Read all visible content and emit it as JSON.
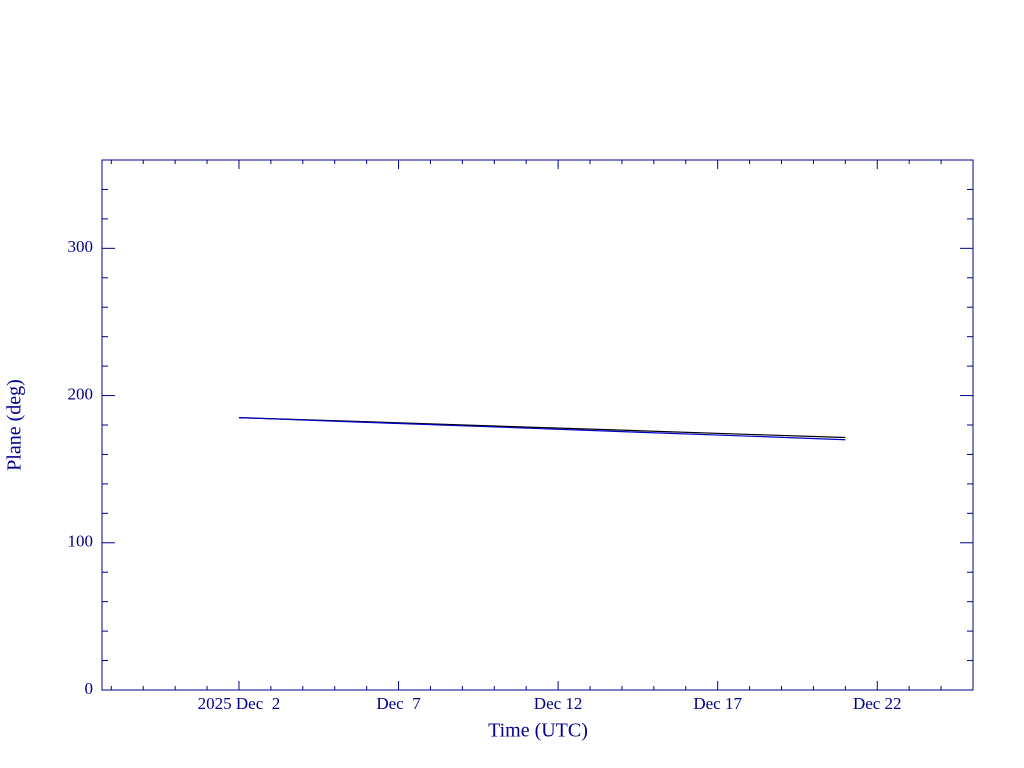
{
  "chart_data": {
    "type": "line",
    "xlabel": "Time (UTC)",
    "ylabel": "Plane (deg)",
    "x": [
      "2025-12-02",
      "2025-12-06",
      "2025-12-10",
      "2025-12-14",
      "2025-12-18",
      "2025-12-21"
    ],
    "series": [
      {
        "color": "#000000",
        "values": [
          185,
          182.2,
          179.3,
          176.5,
          173.6,
          171.5
        ]
      },
      {
        "color": "#0000cc",
        "values": [
          185,
          181.8,
          178.7,
          175.5,
          172.4,
          170
        ]
      }
    ],
    "xlim": [
      "2025-11-27T17:00",
      "2025-12-25T00:00"
    ],
    "xticks": [
      {
        "value": "2025-12-02",
        "label": "2025 Dec  2"
      },
      {
        "value": "2025-12-07",
        "label": "Dec  7"
      },
      {
        "value": "2025-12-12",
        "label": "Dec 12"
      },
      {
        "value": "2025-12-17",
        "label": "Dec 17"
      },
      {
        "value": "2025-12-22",
        "label": "Dec 22"
      }
    ],
    "xminorticks": [
      "2025-11-28",
      "2025-11-29",
      "2025-11-30",
      "2025-12-01",
      "2025-12-03",
      "2025-12-04",
      "2025-12-05",
      "2025-12-06",
      "2025-12-08",
      "2025-12-09",
      "2025-12-10",
      "2025-12-11",
      "2025-12-13",
      "2025-12-14",
      "2025-12-15",
      "2025-12-16",
      "2025-12-18",
      "2025-12-19",
      "2025-12-20",
      "2025-12-21",
      "2025-12-23",
      "2025-12-24"
    ],
    "ylim": [
      0,
      360
    ],
    "yticks": [
      0,
      100,
      200,
      300
    ],
    "yminorticks": [
      20,
      40,
      60,
      80,
      120,
      140,
      160,
      180,
      220,
      240,
      260,
      280,
      320,
      340
    ],
    "axis_color": "#00008b"
  }
}
